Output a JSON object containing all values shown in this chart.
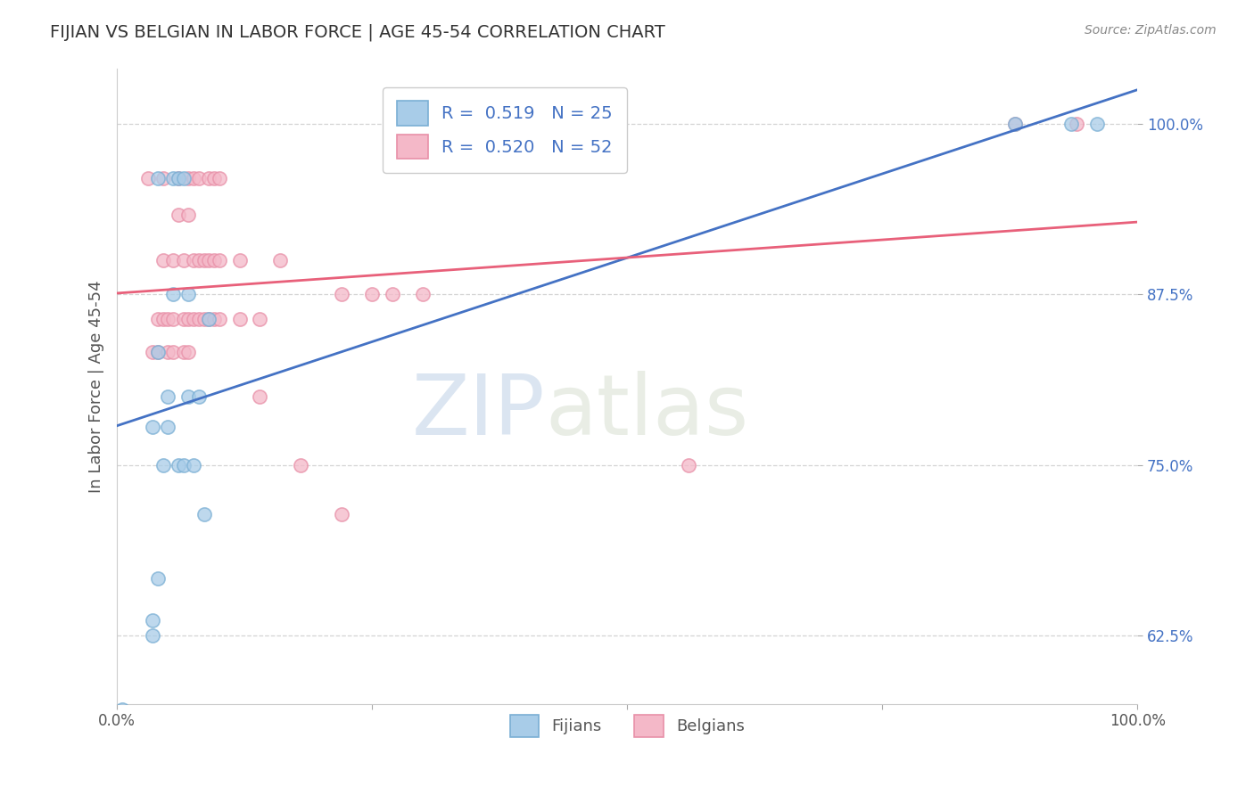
{
  "title": "FIJIAN VS BELGIAN IN LABOR FORCE | AGE 45-54 CORRELATION CHART",
  "source": "Source: ZipAtlas.com",
  "xlabel": "",
  "ylabel": "In Labor Force | Age 45-54",
  "xlim": [
    0.0,
    1.0
  ],
  "ylim": [
    0.575,
    1.04
  ],
  "yticks": [
    0.625,
    0.75,
    0.875,
    1.0
  ],
  "ytick_labels": [
    "62.5%",
    "75.0%",
    "87.5%",
    "100.0%"
  ],
  "xticks": [
    0.0,
    0.25,
    0.5,
    0.75,
    1.0
  ],
  "xtick_labels": [
    "0.0%",
    "",
    "",
    "",
    "100.0%"
  ],
  "fijian_color": "#a8cce8",
  "belgian_color": "#f4b8c8",
  "fijian_edge_color": "#7aafd4",
  "belgian_edge_color": "#e890a8",
  "fijian_line_color": "#4472c4",
  "belgian_line_color": "#e8607a",
  "fijian_r": 0.519,
  "fijian_n": 25,
  "belgian_r": 0.52,
  "belgian_n": 52,
  "fijian_points": [
    [
      0.005,
      0.571
    ],
    [
      0.04,
      0.96
    ],
    [
      0.055,
      0.96
    ],
    [
      0.06,
      0.96
    ],
    [
      0.065,
      0.96
    ],
    [
      0.055,
      0.875
    ],
    [
      0.07,
      0.875
    ],
    [
      0.09,
      0.857
    ],
    [
      0.04,
      0.833
    ],
    [
      0.05,
      0.8
    ],
    [
      0.07,
      0.8
    ],
    [
      0.08,
      0.8
    ],
    [
      0.035,
      0.778
    ],
    [
      0.05,
      0.778
    ],
    [
      0.045,
      0.75
    ],
    [
      0.06,
      0.75
    ],
    [
      0.065,
      0.75
    ],
    [
      0.075,
      0.75
    ],
    [
      0.085,
      0.714
    ],
    [
      0.04,
      0.667
    ],
    [
      0.035,
      0.636
    ],
    [
      0.035,
      0.625
    ],
    [
      0.88,
      1.0
    ],
    [
      0.935,
      1.0
    ],
    [
      0.96,
      1.0
    ]
  ],
  "belgian_points": [
    [
      0.03,
      0.96
    ],
    [
      0.045,
      0.96
    ],
    [
      0.06,
      0.96
    ],
    [
      0.07,
      0.96
    ],
    [
      0.075,
      0.96
    ],
    [
      0.08,
      0.96
    ],
    [
      0.09,
      0.96
    ],
    [
      0.095,
      0.96
    ],
    [
      0.1,
      0.96
    ],
    [
      0.06,
      0.933
    ],
    [
      0.07,
      0.933
    ],
    [
      0.045,
      0.9
    ],
    [
      0.055,
      0.9
    ],
    [
      0.065,
      0.9
    ],
    [
      0.075,
      0.9
    ],
    [
      0.08,
      0.9
    ],
    [
      0.085,
      0.9
    ],
    [
      0.09,
      0.9
    ],
    [
      0.095,
      0.9
    ],
    [
      0.1,
      0.9
    ],
    [
      0.12,
      0.9
    ],
    [
      0.16,
      0.9
    ],
    [
      0.22,
      0.875
    ],
    [
      0.25,
      0.875
    ],
    [
      0.27,
      0.875
    ],
    [
      0.3,
      0.875
    ],
    [
      0.04,
      0.857
    ],
    [
      0.045,
      0.857
    ],
    [
      0.05,
      0.857
    ],
    [
      0.055,
      0.857
    ],
    [
      0.065,
      0.857
    ],
    [
      0.07,
      0.857
    ],
    [
      0.075,
      0.857
    ],
    [
      0.08,
      0.857
    ],
    [
      0.085,
      0.857
    ],
    [
      0.09,
      0.857
    ],
    [
      0.095,
      0.857
    ],
    [
      0.1,
      0.857
    ],
    [
      0.12,
      0.857
    ],
    [
      0.14,
      0.857
    ],
    [
      0.035,
      0.833
    ],
    [
      0.04,
      0.833
    ],
    [
      0.05,
      0.833
    ],
    [
      0.055,
      0.833
    ],
    [
      0.065,
      0.833
    ],
    [
      0.07,
      0.833
    ],
    [
      0.14,
      0.8
    ],
    [
      0.18,
      0.75
    ],
    [
      0.22,
      0.714
    ],
    [
      0.56,
      0.75
    ],
    [
      0.88,
      1.0
    ],
    [
      0.94,
      1.0
    ]
  ],
  "watermark_zip": "ZIP",
  "watermark_atlas": "atlas",
  "background_color": "#ffffff",
  "grid_color": "#d0d0d0"
}
